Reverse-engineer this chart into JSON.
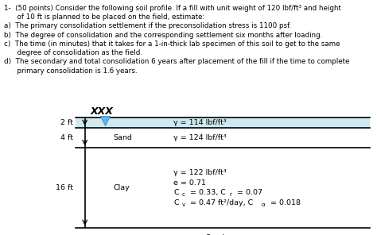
{
  "title_line1": "1-  (50 points) Consider the following soil profile. If a fill with unit weight of 120 lbf/ft³ and height",
  "title_line2": "      of 10 ft is planned to be placed on the field, estimate:",
  "item_a": "a)  The primary consolidation settlement if the preconsolidation stress is 1100 psf.",
  "item_b": "b)  The degree of consolidation and the corresponding settlement six months after loading.",
  "item_c1": "c)  The time (in minutes) that it takes for a 1-in-thick lab specimen of this soil to get to the same",
  "item_c2": "      degree of consolidation as the field.",
  "item_d1": "d)  The secondary and total consolidation 6 years after placement of the fill if the time to complete",
  "item_d2": "      primary consolidation is 1.6 years.",
  "layer1_depth": "2 ft",
  "layer1_property": "γ = 114 lbf/ft³",
  "layer2_depth": "4 ft",
  "layer2_label": "Sand",
  "layer2_property": "γ = 124 lbf/ft³",
  "layer3_depth": "16 ft",
  "layer3_label": "Clay",
  "layer3_prop1": "γ = 122 lbf/ft³",
  "layer3_prop2": "e = 0.71",
  "bottom_label": "Sand",
  "bg_color": "#ffffff",
  "text_color": "#000000",
  "line_color": "#000000",
  "water_color": "#6ab0e0",
  "fill_color": "#d0e8f0"
}
